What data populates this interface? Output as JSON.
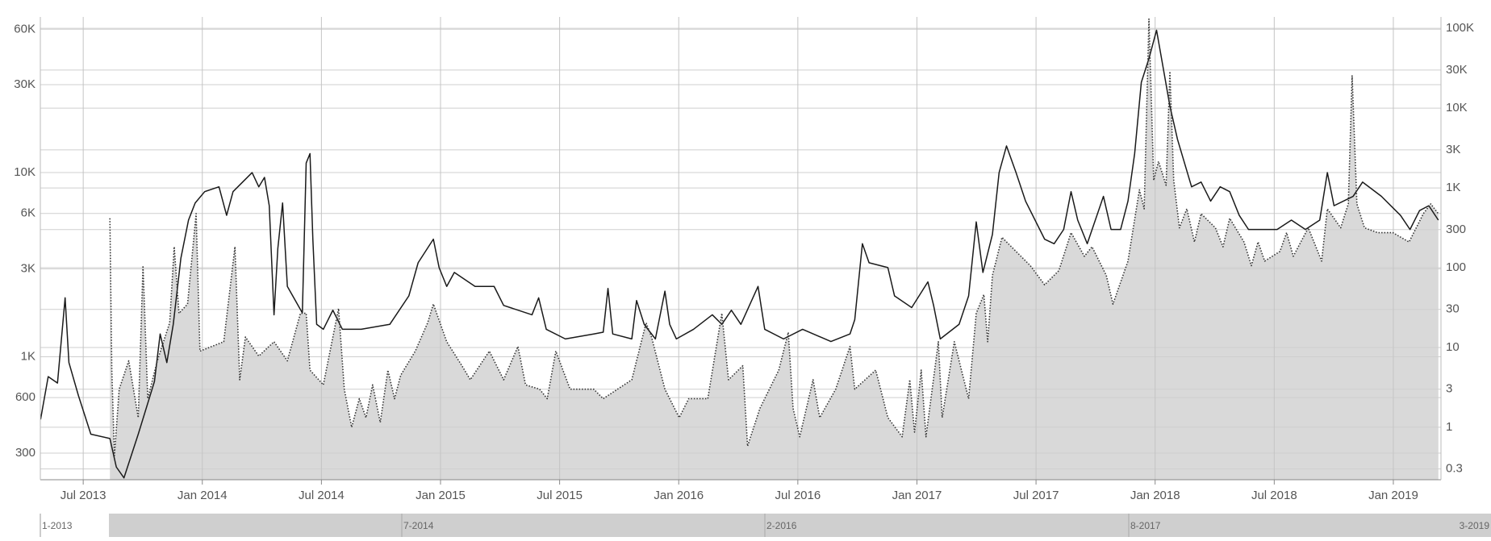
{
  "chart_data": {
    "type": "line",
    "xlim": [
      2013.32,
      2019.2
    ],
    "xticks": [
      {
        "value": 2013.5,
        "label": "Jul 2013"
      },
      {
        "value": 2014.0,
        "label": "Jan 2014"
      },
      {
        "value": 2014.5,
        "label": "Jul 2014"
      },
      {
        "value": 2015.0,
        "label": "Jan 2015"
      },
      {
        "value": 2015.5,
        "label": "Jul 2015"
      },
      {
        "value": 2016.0,
        "label": "Jan 2016"
      },
      {
        "value": 2016.5,
        "label": "Jul 2016"
      },
      {
        "value": 2017.0,
        "label": "Jan 2017"
      },
      {
        "value": 2017.5,
        "label": "Jul 2017"
      },
      {
        "value": 2018.0,
        "label": "Jan 2018"
      },
      {
        "value": 2018.5,
        "label": "Jul 2018"
      },
      {
        "value": 2019.0,
        "label": "Jan 2019"
      }
    ],
    "ylim": [
      215,
      70000
    ],
    "ylog": true,
    "yticks": [
      300,
      600,
      {
        "value": 1000,
        "label": "1K"
      },
      {
        "value": 3000,
        "label": "3K"
      },
      {
        "value": 6000,
        "label": "6K"
      },
      {
        "value": 10000,
        "label": "10K"
      },
      {
        "value": 30000,
        "label": "30K"
      },
      {
        "value": 60000,
        "label": "60K"
      }
    ],
    "y2lim": [
      0.22,
      139000
    ],
    "y2log": true,
    "y2ticks": [
      0.3,
      1,
      3,
      10,
      30,
      100,
      300,
      {
        "value": 1000,
        "label": "1K"
      },
      {
        "value": 3000,
        "label": "3K"
      },
      {
        "value": 10000,
        "label": "10K"
      },
      {
        "value": 30000,
        "label": "30K"
      },
      {
        "value": 100000,
        "label": "100K"
      }
    ],
    "grid": true,
    "series": [
      {
        "color": "#1a1a1a",
        "axis": "y",
        "style": "solid",
        "x": [
          2013.321,
          2013.353,
          2013.392,
          2013.424,
          2013.44,
          2013.48,
          2013.532,
          2013.612,
          2013.639,
          2013.671,
          2013.731,
          2013.799,
          2013.823,
          2013.851,
          2013.878,
          2013.91,
          2013.942,
          2013.97,
          2014.01,
          2014.07,
          2014.102,
          2014.129,
          2014.209,
          2014.237,
          2014.261,
          2014.281,
          2014.301,
          2014.317,
          2014.337,
          2014.357,
          2014.42,
          2014.436,
          2014.452,
          2014.464,
          2014.48,
          2014.508,
          2014.548,
          2014.588,
          2014.667,
          2014.787,
          2014.867,
          2014.906,
          2014.97,
          2014.994,
          2015.026,
          2015.058,
          2015.145,
          2015.225,
          2015.265,
          2015.384,
          2015.412,
          2015.444,
          2015.524,
          2015.643,
          2015.683,
          2015.703,
          2015.723,
          2015.803,
          2015.823,
          2015.855,
          2015.902,
          2015.942,
          2015.962,
          2015.99,
          2016.062,
          2016.141,
          2016.181,
          2016.221,
          2016.261,
          2016.333,
          2016.361,
          2016.44,
          2016.52,
          2016.639,
          2016.719,
          2016.739,
          2016.771,
          2016.799,
          2016.878,
          2016.906,
          2016.978,
          2017.046,
          2017.07,
          2017.098,
          2017.177,
          2017.217,
          2017.249,
          2017.277,
          2017.317,
          2017.345,
          2017.376,
          2017.416,
          2017.456,
          2017.536,
          2017.576,
          2017.616,
          2017.647,
          2017.675,
          2017.715,
          2017.783,
          2017.815,
          2017.855,
          2017.886,
          2017.914,
          2017.942,
          2017.974,
          2018.006,
          2018.034,
          2018.062,
          2018.094,
          2018.153,
          2018.193,
          2018.233,
          2018.273,
          2018.313,
          2018.353,
          2018.392,
          2018.512,
          2018.572,
          2018.631,
          2018.691,
          2018.723,
          2018.751,
          2018.831,
          2018.871,
          2018.95,
          2019.03,
          2019.07,
          2019.11,
          2019.149,
          2019.189
        ],
        "values": [
          457,
          780,
          720,
          2090,
          930,
          615,
          380,
          360,
          252,
          220,
          380,
          734,
          1330,
          930,
          1500,
          3430,
          5520,
          6840,
          7880,
          8370,
          5860,
          7880,
          10000,
          8370,
          9420,
          6610,
          1690,
          3870,
          6840,
          2410,
          1730,
          11270,
          12680,
          4350,
          1500,
          1410,
          1790,
          1410,
          1410,
          1500,
          2140,
          3240,
          4350,
          3050,
          2410,
          2870,
          2410,
          2410,
          1900,
          1690,
          2090,
          1410,
          1250,
          1330,
          1360,
          2350,
          1330,
          1250,
          2020,
          1500,
          1250,
          2270,
          1500,
          1250,
          1410,
          1690,
          1500,
          1790,
          1500,
          2410,
          1410,
          1250,
          1410,
          1210,
          1330,
          1590,
          4110,
          3240,
          3050,
          2140,
          1850,
          2550,
          1900,
          1250,
          1500,
          2140,
          5400,
          2870,
          4620,
          10000,
          13950,
          10000,
          7000,
          4350,
          4110,
          4910,
          7880,
          5520,
          4110,
          7430,
          4910,
          4910,
          7000,
          12680,
          30900,
          41600,
          59300,
          36900,
          22950,
          15140,
          8370,
          8880,
          7000,
          8370,
          7880,
          5860,
          4910,
          4910,
          5520,
          4910,
          5520,
          10000,
          6610,
          7430,
          8880,
          7430,
          5860,
          4910,
          6220,
          6610,
          5520
        ]
      },
      {
        "color": "#333333",
        "axis": "y2",
        "style": "dotted",
        "fill": "#d9d9d9",
        "x": [
          2013.612,
          2013.62,
          2013.631,
          2013.651,
          2013.691,
          2013.731,
          2013.751,
          2013.771,
          2013.811,
          2013.863,
          2013.882,
          2013.902,
          2013.938,
          2013.974,
          2013.99,
          2014.09,
          2014.137,
          2014.157,
          2014.181,
          2014.237,
          2014.301,
          2014.357,
          2014.412,
          2014.436,
          2014.452,
          2014.508,
          2014.572,
          2014.596,
          2014.627,
          2014.659,
          2014.687,
          2014.715,
          2014.747,
          2014.779,
          2014.807,
          2014.833,
          2014.894,
          2014.946,
          2014.97,
          2015.026,
          2015.09,
          2015.125,
          2015.205,
          2015.265,
          2015.325,
          2015.357,
          2015.416,
          2015.448,
          2015.484,
          2015.544,
          2015.643,
          2015.683,
          2015.803,
          2015.863,
          2015.886,
          2015.942,
          2016.002,
          2016.042,
          2016.122,
          2016.181,
          2016.209,
          2016.269,
          2016.289,
          2016.341,
          2016.42,
          2016.46,
          2016.48,
          2016.508,
          2016.564,
          2016.592,
          2016.659,
          2016.719,
          2016.739,
          2016.827,
          2016.878,
          2016.938,
          2016.97,
          2016.99,
          2017.018,
          2017.038,
          2017.09,
          2017.106,
          2017.157,
          2017.217,
          2017.249,
          2017.281,
          2017.297,
          2017.317,
          2017.357,
          2017.416,
          2017.476,
          2017.536,
          2017.596,
          2017.647,
          2017.703,
          2017.735,
          2017.795,
          2017.823,
          2017.886,
          2017.934,
          2017.954,
          2017.974,
          2017.994,
          2018.014,
          2018.046,
          2018.062,
          2018.078,
          2018.102,
          2018.133,
          2018.165,
          2018.193,
          2018.253,
          2018.285,
          2018.313,
          2018.373,
          2018.404,
          2018.432,
          2018.46,
          2018.524,
          2018.552,
          2018.58,
          2018.643,
          2018.699,
          2018.723,
          2018.779,
          2018.811,
          2018.827,
          2018.847,
          2018.879,
          2018.934,
          2018.998,
          2019.066,
          2019.126,
          2019.157,
          2019.189
        ],
        "values": [
          416,
          5.2,
          0.44,
          3.0,
          6.8,
          1.32,
          106,
          2.28,
          6.8,
          20.4,
          183,
          26.8,
          35,
          477,
          9,
          11.8,
          183,
          3.94,
          13.5,
          7.8,
          11.8,
          6.8,
          26.8,
          26.8,
          5.2,
          3.4,
          30.8,
          3.0,
          1.0,
          2.28,
          1.32,
          3.4,
          1.15,
          5.2,
          2.28,
          4.5,
          9,
          20.4,
          35,
          11.8,
          5.9,
          3.94,
          9,
          3.94,
          10.3,
          3.4,
          3.0,
          2.28,
          9,
          3.0,
          3.0,
          2.28,
          3.94,
          20.4,
          13.5,
          3.0,
          1.32,
          2.28,
          2.28,
          26.8,
          3.94,
          5.9,
          0.58,
          1.73,
          5.2,
          15.5,
          1.73,
          0.76,
          3.94,
          1.32,
          3.0,
          10.3,
          3.0,
          5.2,
          1.32,
          0.76,
          3.94,
          0.87,
          5.2,
          0.76,
          11.8,
          1.32,
          11.8,
          2.28,
          26.8,
          46,
          11.8,
          80,
          240,
          160,
          106,
          61,
          92,
          275,
          139,
          183,
          80,
          35,
          121,
          947,
          547,
          131000,
          1245,
          2150,
          1080,
          28800,
          1245,
          316,
          547,
          210,
          475,
          316,
          183,
          416,
          210,
          106,
          210,
          121,
          160,
          275,
          139,
          316,
          121,
          547,
          316,
          630,
          25400,
          630,
          316,
          275,
          275,
          210,
          475,
          630,
          475
        ]
      }
    ],
    "navigator": {
      "labels": [
        "1-2013",
        "7-2014",
        "2-2016",
        "8-2017",
        "3-2019"
      ]
    }
  }
}
